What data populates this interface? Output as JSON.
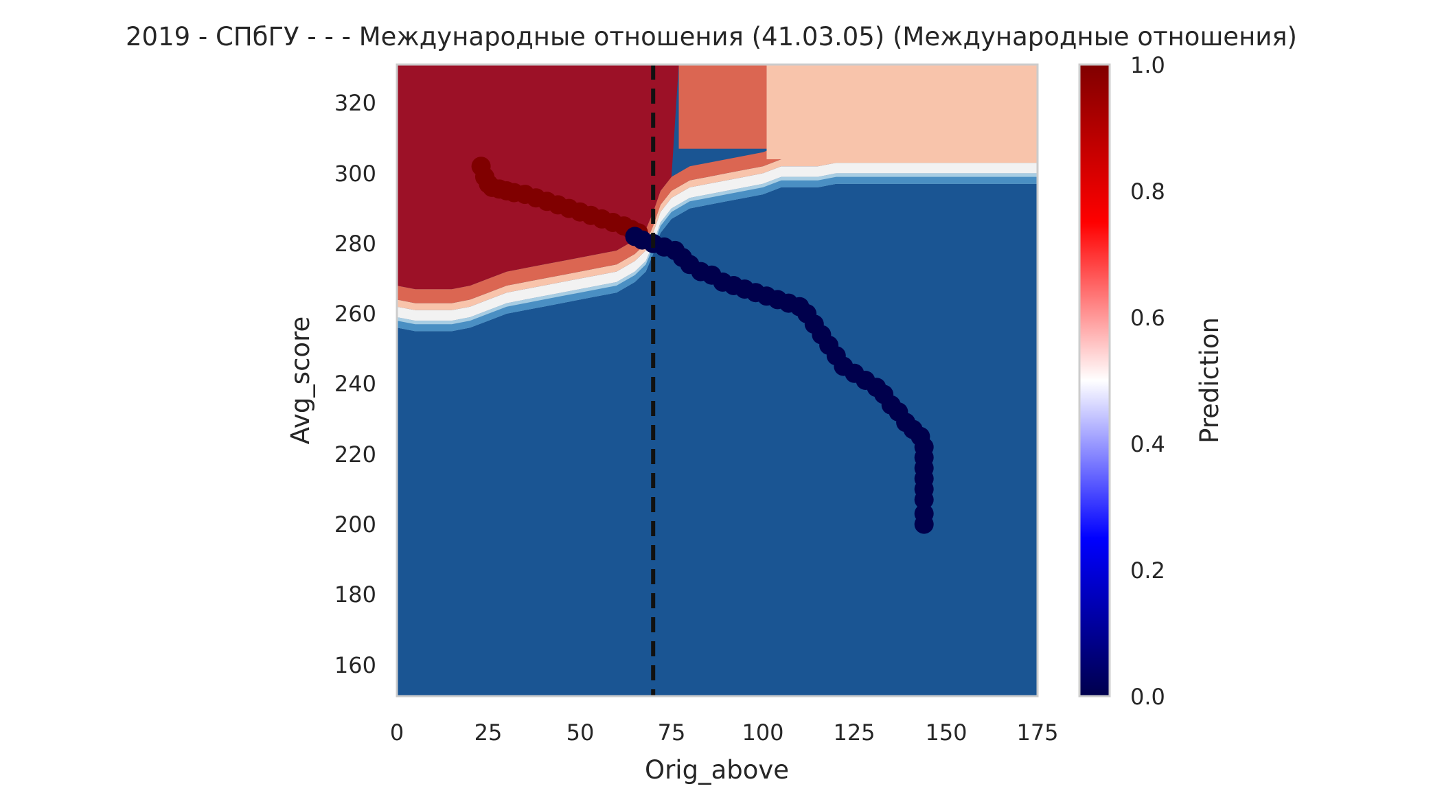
{
  "chart_data": {
    "type": "heatmap",
    "title": "2019 - СПбГУ - - - Международные отношения (41.03.05) (Международные отношения)",
    "xlabel": "Orig_above",
    "ylabel": "Avg_score",
    "xlim": [
      0,
      175
    ],
    "ylim": [
      150,
      330
    ],
    "x_ticks": [
      "0",
      "25",
      "50",
      "75",
      "100",
      "125",
      "150",
      "175"
    ],
    "y_ticks": [
      "160",
      "180",
      "200",
      "220",
      "240",
      "260",
      "280",
      "300",
      "320"
    ],
    "grid": false,
    "colorbar": {
      "label": "Prediction",
      "range": [
        0.0,
        1.0
      ],
      "ticks": [
        "0.0",
        "0.2",
        "0.4",
        "0.6",
        "0.8",
        "1.0"
      ],
      "colormap": "seismic"
    },
    "contour_colors": {
      "dark_blue": "#1a5593",
      "mid_blue": "#4a8fc3",
      "light_blue": "#a8cde3",
      "near_white": "#f2f2f2",
      "light_salmon": "#f8c4ab",
      "salmon": "#db6652",
      "dark_red": "#9c1127"
    },
    "regions": {
      "boundary_x": [
        0,
        5,
        10,
        15,
        20,
        25,
        30,
        35,
        40,
        45,
        50,
        55,
        60,
        65,
        68,
        70,
        72,
        75,
        80,
        85,
        90,
        95,
        100,
        105,
        110,
        115,
        120,
        125,
        130,
        135,
        140,
        145,
        150,
        155,
        160,
        165,
        170,
        175
      ],
      "boundary_y": [
        260,
        259,
        259,
        259,
        260,
        262,
        264,
        265,
        266,
        267,
        268,
        269,
        270,
        273,
        276,
        281,
        287,
        291,
        294,
        295,
        296,
        297,
        298,
        300,
        300,
        300,
        301,
        301,
        301,
        301,
        301,
        301,
        301,
        301,
        301,
        301,
        301,
        301
      ],
      "high_left_x_max": 77,
      "high_strip": {
        "x_from": 77,
        "x_to": 101,
        "y_from": 306
      },
      "light_region": {
        "x_from": 101
      }
    },
    "marker_lines": [
      {
        "axis": "x",
        "value": 70,
        "style": "dashed",
        "color": "#111111"
      }
    ],
    "series": [
      {
        "prediction": 1.0,
        "color": "#800000",
        "x": [
          23,
          24,
          25,
          26,
          28,
          30,
          32,
          35,
          38,
          41,
          44,
          47,
          50,
          53,
          56,
          59,
          62,
          64,
          66
        ],
        "y": [
          301,
          298,
          296,
          295,
          294.5,
          294,
          293.5,
          293,
          292,
          291,
          290,
          289,
          288,
          287,
          286,
          285,
          284,
          283,
          282
        ]
      },
      {
        "prediction": 0.0,
        "color": "#00004c",
        "x": [
          65,
          67,
          70,
          73,
          76,
          78,
          80,
          83,
          86,
          89,
          92,
          95,
          98,
          101,
          104,
          107,
          110,
          112,
          114,
          116,
          118,
          120,
          122,
          125,
          128,
          131,
          133,
          135,
          137,
          139,
          141,
          143,
          144,
          144,
          144,
          144,
          144,
          144,
          144,
          144
        ],
        "y": [
          281,
          280,
          279,
          278,
          277,
          275,
          273,
          271,
          270,
          268,
          267,
          266,
          265,
          264,
          263,
          262,
          261,
          259,
          256,
          253,
          250,
          247,
          244,
          242,
          240,
          238,
          236,
          233,
          231,
          228,
          226,
          224,
          221,
          218,
          215,
          212,
          209,
          206,
          202,
          199
        ]
      }
    ]
  }
}
